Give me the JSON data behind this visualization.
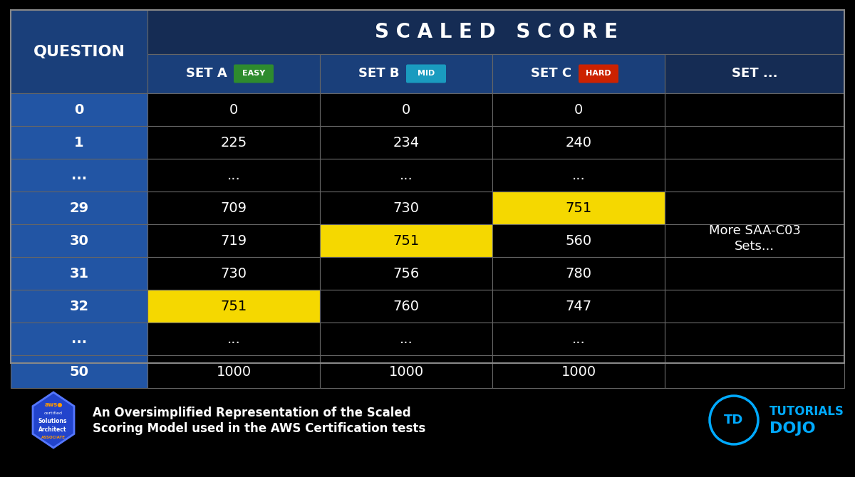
{
  "bg_color": "#000000",
  "header_row1_bg": "#152c54",
  "header_row2_bg": "#1a3f7a",
  "question_col_bg": "#2255a4",
  "data_col_bg": "#000000",
  "text_color_white": "#ffffff",
  "text_color_black": "#000000",
  "highlight_yellow": "#f5d800",
  "easy_badge_color": "#2e8b2e",
  "mid_badge_color": "#1a9bbf",
  "hard_badge_color": "#cc2200",
  "title": "S C A L E D   S C O R E",
  "col_headers": [
    "SET A",
    "SET B",
    "SET C",
    "SET ..."
  ],
  "col_badges": [
    "EASY",
    "MID",
    "HARD",
    ""
  ],
  "col_badge_colors": [
    "#2e8b2e",
    "#1a9bbf",
    "#cc2200",
    ""
  ],
  "rows": [
    {
      "q": "0",
      "a": "0",
      "b": "0",
      "c": "0",
      "highlight": []
    },
    {
      "q": "1",
      "a": "225",
      "b": "234",
      "c": "240",
      "highlight": []
    },
    {
      "q": "...",
      "a": "...",
      "b": "...",
      "c": "...",
      "highlight": []
    },
    {
      "q": "29",
      "a": "709",
      "b": "730",
      "c": "751",
      "highlight": [
        "c"
      ]
    },
    {
      "q": "30",
      "a": "719",
      "b": "751",
      "c": "560",
      "highlight": [
        "b"
      ]
    },
    {
      "q": "31",
      "a": "730",
      "b": "756",
      "c": "780",
      "highlight": []
    },
    {
      "q": "32",
      "a": "751",
      "b": "760",
      "c": "747",
      "highlight": [
        "a"
      ]
    },
    {
      "q": "...",
      "a": "...",
      "b": "...",
      "c": "...",
      "highlight": []
    },
    {
      "q": "50",
      "a": "1000",
      "b": "1000",
      "c": "1000",
      "highlight": []
    }
  ],
  "more_sets_text": [
    "More SAA-C03",
    "Sets..."
  ],
  "footer_text_line1": "An Oversimplified Representation of the Scaled",
  "footer_text_line2": "Scoring Model used in the AWS Certification tests"
}
